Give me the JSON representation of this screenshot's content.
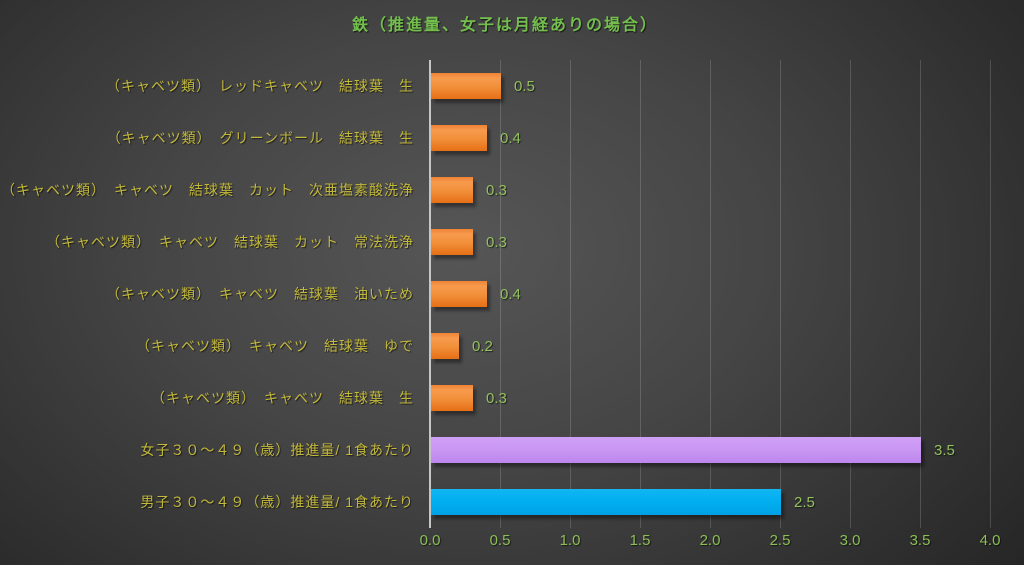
{
  "title": "鉄（推進量、女子は月経ありの場合）",
  "colors": {
    "background_center": "#565656",
    "background_edge": "#222222",
    "title_text": "#74be4e",
    "category_text": "#c2b83a",
    "value_text": "#92c15e",
    "tick_text": "#8cbf55",
    "axis_line": "#c6c6c6",
    "gridline": "rgba(255,255,255,0.16)",
    "bar_orange": "#f08c36",
    "bar_purple": "#c996f3",
    "bar_blue": "#00aeef"
  },
  "chart_data": {
    "type": "bar",
    "orientation": "horizontal",
    "title": "鉄（推進量、女子は月経ありの場合）",
    "categories": [
      "（キャベツ類）　レッドキャベツ　結球葉　生",
      "（キャベツ類）　グリーンボール　結球葉　生",
      "（キャベツ類）　キャベツ　結球葉　カット　次亜塩素酸洗浄",
      "（キャベツ類）　キャベツ　結球葉　カット　常法洗浄",
      "（キャベツ類）　キャベツ　結球葉　油いため",
      "（キャベツ類）　キャベツ　結球葉　ゆで",
      "（キャベツ類）　キャベツ　結球葉　生",
      "女子３０～４９（歳）推進量/ 1食あたり",
      "男子３０～４９（歳）推進量/ 1食あたり"
    ],
    "values": [
      0.5,
      0.4,
      0.3,
      0.3,
      0.4,
      0.2,
      0.3,
      3.5,
      2.5
    ],
    "value_labels": [
      "0.5",
      "0.4",
      "0.3",
      "0.3",
      "0.4",
      "0.2",
      "0.3",
      "3.5",
      "2.5"
    ],
    "bar_colors": [
      "orange",
      "orange",
      "orange",
      "orange",
      "orange",
      "orange",
      "orange",
      "purple",
      "blue"
    ],
    "xlim": [
      0,
      4
    ],
    "xticks": [
      "0.0",
      "0.5",
      "1.0",
      "1.5",
      "2.0",
      "2.5",
      "3.0",
      "3.5",
      "4.0"
    ],
    "grid": true,
    "legend": "none",
    "xlabel": "",
    "ylabel": ""
  }
}
